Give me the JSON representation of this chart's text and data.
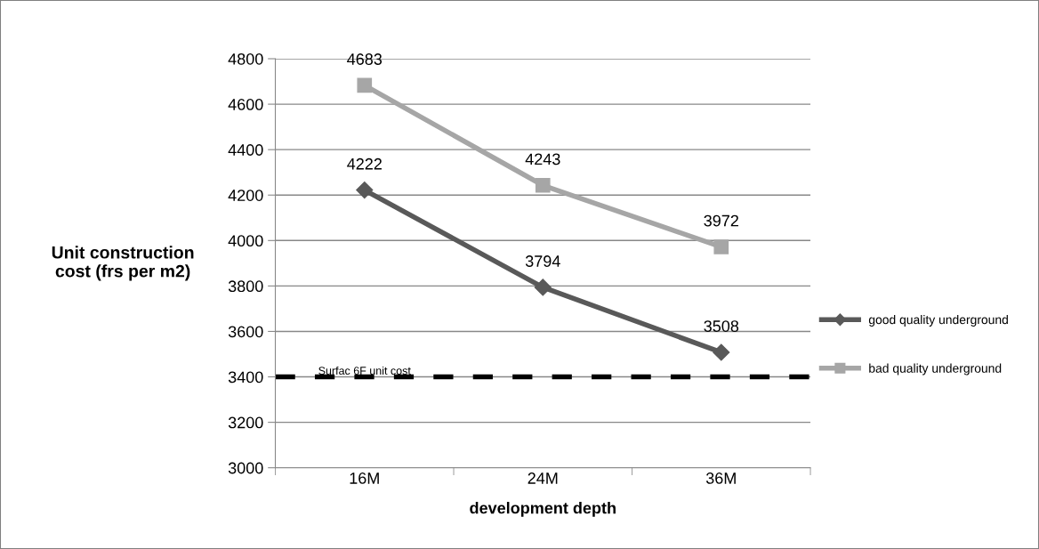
{
  "chart_data": {
    "type": "line",
    "xlabel": "development depth",
    "ylabel": "Unit construction\ncost (frs per m2)",
    "categories": [
      "16M",
      "24M",
      "36M"
    ],
    "series": [
      {
        "name": "good quality underground",
        "color": "#595959",
        "marker": "diamond",
        "values": [
          4222,
          3794,
          3508
        ]
      },
      {
        "name": "bad quality underground",
        "color": "#a6a6a6",
        "marker": "square",
        "values": [
          4683,
          4243,
          3972
        ]
      }
    ],
    "ylim": [
      3000,
      4800
    ],
    "yticks": [
      3000,
      3200,
      3400,
      3600,
      3800,
      4000,
      4200,
      4400,
      4600,
      4800
    ],
    "ref_lines": [
      {
        "axis": "y",
        "value": 3400,
        "label": "Surfac 6F unit cost",
        "color": "#000000",
        "line_style": "dashed"
      }
    ],
    "data_labels": true,
    "grid": "y",
    "legend": "right",
    "line_style": "solid"
  }
}
